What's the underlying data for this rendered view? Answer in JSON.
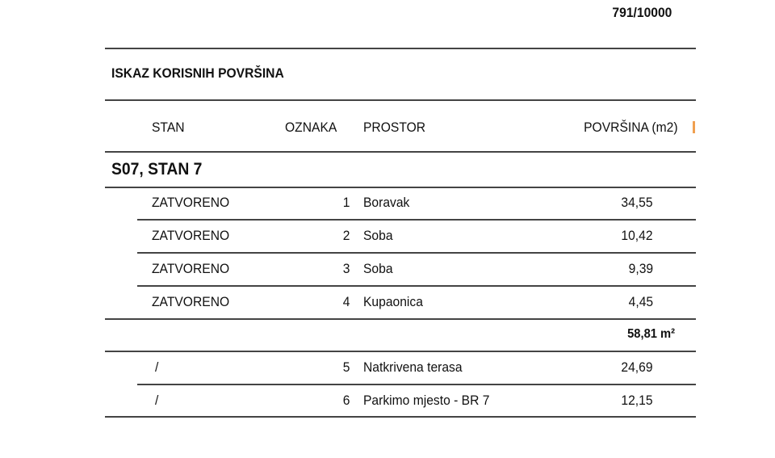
{
  "page_ratio": "791/10000",
  "title": "ISKAZ  KORISNIH POVRŠINA",
  "headers": {
    "stan": "STAN",
    "oznaka": "OZNAKA",
    "prostor": "PROSTOR",
    "povrsina": "POVRŠINA (m2)"
  },
  "unit": "S07, STAN 7",
  "rows": [
    {
      "stan": "ZATVORENO",
      "oznaka": "1",
      "prostor": "Boravak",
      "povrsina": "34,55"
    },
    {
      "stan": "ZATVORENO",
      "oznaka": "2",
      "prostor": "Soba",
      "povrsina": "10,42"
    },
    {
      "stan": "ZATVORENO",
      "oznaka": "3",
      "prostor": "Soba",
      "povrsina": "9,39"
    },
    {
      "stan": "ZATVORENO",
      "oznaka": "4",
      "prostor": "Kupaonica",
      "povrsina": "4,45"
    }
  ],
  "subtotal": "58,81 m²",
  "extra_rows": [
    {
      "stan": "/",
      "oznaka": "5",
      "prostor": "Natkrivena terasa",
      "povrsina": "24,69"
    },
    {
      "stan": "/",
      "oznaka": "6",
      "prostor": "Parkimo mjesto - BR 7",
      "povrsina": "12,15"
    }
  ]
}
